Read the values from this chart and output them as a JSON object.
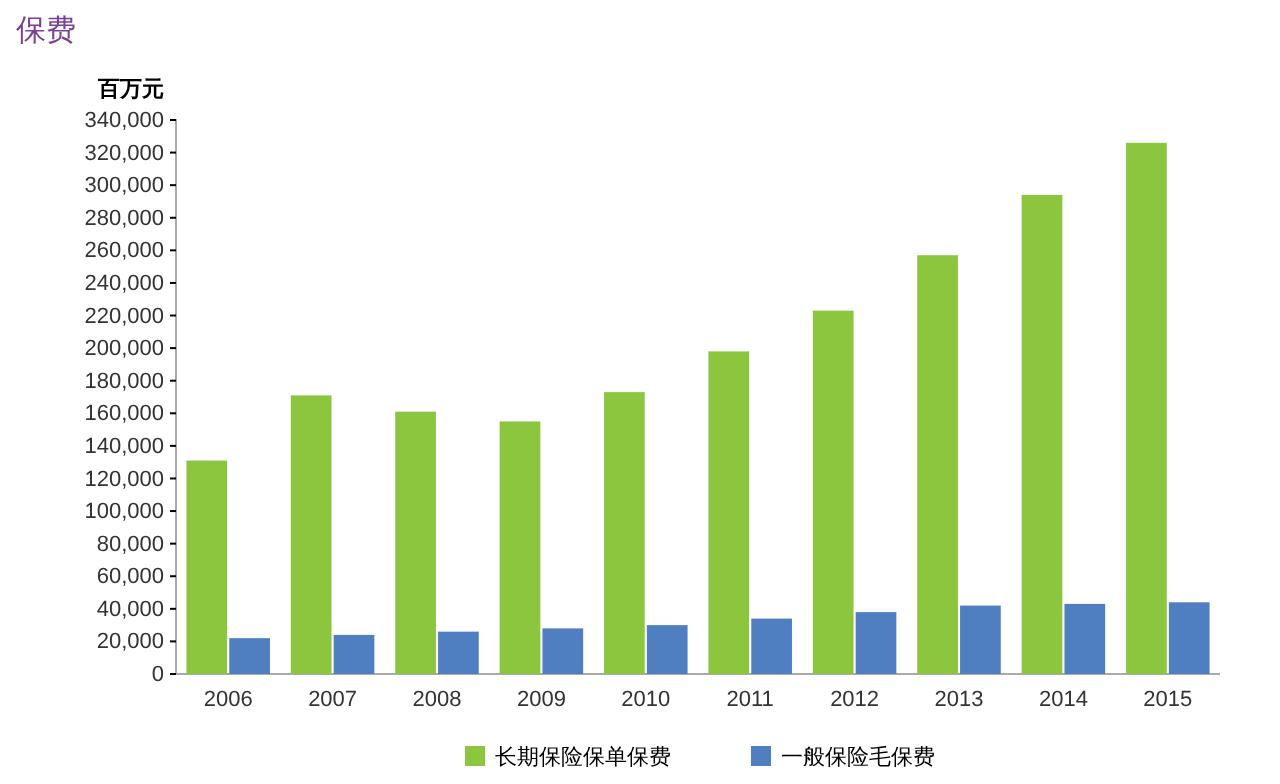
{
  "chart_data": {
    "type": "bar",
    "title": "保费",
    "ylabel": "百万元",
    "categories": [
      "2006",
      "2007",
      "2008",
      "2009",
      "2010",
      "2011",
      "2012",
      "2013",
      "2014",
      "2015"
    ],
    "series": [
      {
        "name": "长期保险保单保费",
        "color": "#8cc63f",
        "values": [
          131000,
          171000,
          161000,
          155000,
          173000,
          198000,
          223000,
          257000,
          294000,
          326000
        ]
      },
      {
        "name": "一般保险毛保费",
        "color": "#4f7fc1",
        "values": [
          22000,
          24000,
          26000,
          28000,
          30000,
          34000,
          38000,
          42000,
          43000,
          44000
        ]
      }
    ],
    "ylim": [
      0,
      340000
    ],
    "yticks": [
      0,
      {
        "value": 20000,
        "label": "20,000"
      },
      {
        "value": 40000,
        "label": "40,000"
      },
      {
        "value": 60000,
        "label": "60,000"
      },
      {
        "value": 80000,
        "label": "80,000"
      },
      {
        "value": 100000,
        "label": "100,000"
      },
      {
        "value": 120000,
        "label": "120,000"
      },
      {
        "value": 140000,
        "label": "140,000"
      },
      {
        "value": 160000,
        "label": "160,000"
      },
      {
        "value": 180000,
        "label": "180,000"
      },
      {
        "value": 200000,
        "label": "200,000"
      },
      {
        "value": 220000,
        "label": "220,000"
      },
      {
        "value": 240000,
        "label": "240,000"
      },
      {
        "value": 260000,
        "label": "260,000"
      },
      {
        "value": 280000,
        "label": "280,000"
      },
      {
        "value": 300000,
        "label": "300,000"
      },
      {
        "value": 320000,
        "label": "320,000"
      },
      {
        "value": 340000,
        "label": "340,000"
      }
    ],
    "grid": false,
    "legend": "bottom"
  }
}
